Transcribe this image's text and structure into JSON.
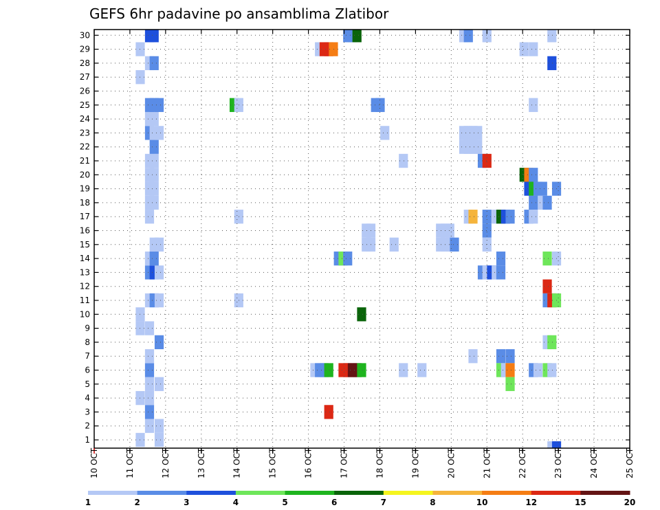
{
  "chart_data": {
    "type": "heatmap",
    "title": "GEFS 6hr padavine po ansamblima Zlatibor",
    "xlabel": "",
    "ylabel": "",
    "x_tick_labels": [
      "10 OCT",
      "11 OCT",
      "12 OCT",
      "13 OCT",
      "14 OCT",
      "15 OCT",
      "16 OCT",
      "17 OCT",
      "18 OCT",
      "19 OCT",
      "20 OCT",
      "21 OCT",
      "22 OCT",
      "23 OCT",
      "24 OCT",
      "25 OCT"
    ],
    "xlim": [
      0,
      15
    ],
    "ylim": [
      0,
      30
    ],
    "y_tick_labels": [
      "1",
      "2",
      "3",
      "4",
      "5",
      "6",
      "7",
      "8",
      "9",
      "10",
      "11",
      "12",
      "13",
      "14",
      "15",
      "16",
      "17",
      "18",
      "19",
      "20",
      "21",
      "22",
      "23",
      "24",
      "25",
      "26",
      "27",
      "28",
      "29",
      "30"
    ],
    "grid": true,
    "colorbar": {
      "labels": [
        "1",
        "2",
        "3",
        "4",
        "5",
        "6",
        "7",
        "8",
        "10",
        "12",
        "15",
        "20"
      ],
      "colors": [
        "#b4c8f5",
        "#5a8ce6",
        "#1e50dc",
        "#6ee65a",
        "#1eb41e",
        "#0a640a",
        "#f5f51e",
        "#f5b43c",
        "#f57d14",
        "#dc2814",
        "#641414"
      ]
    },
    "cells": [
      {
        "x": 1.29,
        "y": 1,
        "c": 0
      },
      {
        "x": 1.82,
        "y": 1,
        "c": 0
      },
      {
        "x": 1.55,
        "y": 2,
        "c": 0
      },
      {
        "x": 1.82,
        "y": 2,
        "c": 0
      },
      {
        "x": 1.55,
        "y": 3,
        "c": 1
      },
      {
        "x": 1.29,
        "y": 4,
        "c": 0
      },
      {
        "x": 1.55,
        "y": 4,
        "c": 0
      },
      {
        "x": 1.55,
        "y": 5,
        "c": 0
      },
      {
        "x": 1.82,
        "y": 5,
        "c": 0
      },
      {
        "x": 1.55,
        "y": 6,
        "c": 1
      },
      {
        "x": 1.55,
        "y": 7,
        "c": 0
      },
      {
        "x": 1.82,
        "y": 8,
        "c": 1
      },
      {
        "x": 1.29,
        "y": 9,
        "c": 0
      },
      {
        "x": 1.55,
        "y": 9,
        "c": 0
      },
      {
        "x": 1.29,
        "y": 10,
        "c": 0
      },
      {
        "x": 1.55,
        "y": 11,
        "c": 0
      },
      {
        "x": 1.68,
        "y": 11,
        "c": 1
      },
      {
        "x": 1.82,
        "y": 11,
        "c": 0
      },
      {
        "x": 1.55,
        "y": 13,
        "c": 1
      },
      {
        "x": 1.68,
        "y": 13,
        "c": 2
      },
      {
        "x": 1.82,
        "y": 13,
        "c": 0
      },
      {
        "x": 1.55,
        "y": 14,
        "c": 0
      },
      {
        "x": 1.68,
        "y": 14,
        "c": 1
      },
      {
        "x": 1.68,
        "y": 15,
        "c": 0
      },
      {
        "x": 1.82,
        "y": 15,
        "c": 0
      },
      {
        "x": 1.55,
        "y": 17,
        "c": 0
      },
      {
        "x": 1.55,
        "y": 18,
        "c": 0
      },
      {
        "x": 1.68,
        "y": 18,
        "c": 0
      },
      {
        "x": 1.55,
        "y": 19,
        "c": 0
      },
      {
        "x": 1.68,
        "y": 19,
        "c": 0
      },
      {
        "x": 1.55,
        "y": 20,
        "c": 0
      },
      {
        "x": 1.68,
        "y": 20,
        "c": 0
      },
      {
        "x": 1.55,
        "y": 21,
        "c": 0
      },
      {
        "x": 1.68,
        "y": 21,
        "c": 0
      },
      {
        "x": 1.68,
        "y": 22,
        "c": 1
      },
      {
        "x": 1.55,
        "y": 23,
        "c": 1
      },
      {
        "x": 1.68,
        "y": 23,
        "c": 0
      },
      {
        "x": 1.82,
        "y": 23,
        "c": 0
      },
      {
        "x": 1.55,
        "y": 24,
        "c": 0
      },
      {
        "x": 1.68,
        "y": 24,
        "c": 0
      },
      {
        "x": 1.55,
        "y": 25,
        "c": 1
      },
      {
        "x": 1.68,
        "y": 25,
        "c": 1
      },
      {
        "x": 1.82,
        "y": 25,
        "c": 1
      },
      {
        "x": 1.29,
        "y": 27,
        "c": 0
      },
      {
        "x": 1.55,
        "y": 28,
        "c": 0
      },
      {
        "x": 1.68,
        "y": 28,
        "c": 1
      },
      {
        "x": 1.29,
        "y": 29,
        "c": 0
      },
      {
        "x": 1.55,
        "y": 30,
        "c": 2
      },
      {
        "x": 1.68,
        "y": 30,
        "c": 2
      },
      {
        "x": 3.92,
        "y": 25,
        "c": 4
      },
      {
        "x": 4.05,
        "y": 25,
        "c": 0
      },
      {
        "x": 4.05,
        "y": 17,
        "c": 0
      },
      {
        "x": 4.05,
        "y": 11,
        "c": 0
      },
      {
        "x": 6.57,
        "y": 3,
        "c": 9
      },
      {
        "x": 6.18,
        "y": 6,
        "c": 0
      },
      {
        "x": 6.31,
        "y": 6,
        "c": 1
      },
      {
        "x": 6.44,
        "y": 6,
        "c": 1
      },
      {
        "x": 6.57,
        "y": 6,
        "c": 4
      },
      {
        "x": 6.97,
        "y": 6,
        "c": 9
      },
      {
        "x": 7.1,
        "y": 6,
        "c": 9
      },
      {
        "x": 7.23,
        "y": 6,
        "c": 10
      },
      {
        "x": 7.36,
        "y": 6,
        "c": 10
      },
      {
        "x": 7.49,
        "y": 6,
        "c": 4
      },
      {
        "x": 7.49,
        "y": 10,
        "c": 5
      },
      {
        "x": 6.84,
        "y": 14,
        "c": 1
      },
      {
        "x": 6.97,
        "y": 14,
        "c": 3
      },
      {
        "x": 7.1,
        "y": 14,
        "c": 1
      },
      {
        "x": 7.62,
        "y": 15,
        "c": 0
      },
      {
        "x": 7.75,
        "y": 15,
        "c": 0
      },
      {
        "x": 7.62,
        "y": 16,
        "c": 0
      },
      {
        "x": 7.75,
        "y": 16,
        "c": 0
      },
      {
        "x": 7.88,
        "y": 25,
        "c": 1
      },
      {
        "x": 8.01,
        "y": 25,
        "c": 1
      },
      {
        "x": 8.14,
        "y": 23,
        "c": 0
      },
      {
        "x": 8.66,
        "y": 21,
        "c": 0
      },
      {
        "x": 8.4,
        "y": 15,
        "c": 0
      },
      {
        "x": 8.66,
        "y": 6,
        "c": 0
      },
      {
        "x": 9.18,
        "y": 6,
        "c": 0
      },
      {
        "x": 6.31,
        "y": 29,
        "c": 0
      },
      {
        "x": 6.44,
        "y": 29,
        "c": 9
      },
      {
        "x": 6.57,
        "y": 29,
        "c": 9
      },
      {
        "x": 6.7,
        "y": 29,
        "c": 8
      },
      {
        "x": 7.1,
        "y": 30,
        "c": 1
      },
      {
        "x": 7.23,
        "y": 30,
        "c": 1
      },
      {
        "x": 7.36,
        "y": 30,
        "c": 5
      },
      {
        "x": 9.7,
        "y": 15,
        "c": 0
      },
      {
        "x": 9.83,
        "y": 15,
        "c": 0
      },
      {
        "x": 9.96,
        "y": 15,
        "c": 0
      },
      {
        "x": 10.09,
        "y": 15,
        "c": 1
      },
      {
        "x": 9.7,
        "y": 16,
        "c": 0
      },
      {
        "x": 9.83,
        "y": 16,
        "c": 0
      },
      {
        "x": 9.96,
        "y": 16,
        "c": 0
      },
      {
        "x": 10.35,
        "y": 23,
        "c": 0
      },
      {
        "x": 10.48,
        "y": 23,
        "c": 0
      },
      {
        "x": 10.61,
        "y": 23,
        "c": 0
      },
      {
        "x": 10.74,
        "y": 23,
        "c": 0
      },
      {
        "x": 10.35,
        "y": 22,
        "c": 0
      },
      {
        "x": 10.48,
        "y": 22,
        "c": 0
      },
      {
        "x": 10.61,
        "y": 22,
        "c": 0
      },
      {
        "x": 10.74,
        "y": 22,
        "c": 0
      },
      {
        "x": 10.35,
        "y": 30,
        "c": 0
      },
      {
        "x": 10.48,
        "y": 30,
        "c": 1
      },
      {
        "x": 11.0,
        "y": 30,
        "c": 0
      },
      {
        "x": 10.48,
        "y": 17,
        "c": 0
      },
      {
        "x": 10.61,
        "y": 17,
        "c": 7
      },
      {
        "x": 10.61,
        "y": 7,
        "c": 0
      },
      {
        "x": 10.87,
        "y": 21,
        "c": 1
      },
      {
        "x": 11.0,
        "y": 21,
        "c": 9
      },
      {
        "x": 11.0,
        "y": 17,
        "c": 1
      },
      {
        "x": 11.0,
        "y": 16,
        "c": 1
      },
      {
        "x": 11.0,
        "y": 15,
        "c": 0
      },
      {
        "x": 10.87,
        "y": 13,
        "c": 1
      },
      {
        "x": 11.0,
        "y": 13,
        "c": 0
      },
      {
        "x": 11.13,
        "y": 13,
        "c": 2
      },
      {
        "x": 11.26,
        "y": 13,
        "c": 0
      },
      {
        "x": 11.39,
        "y": 13,
        "c": 1
      },
      {
        "x": 11.39,
        "y": 14,
        "c": 1
      },
      {
        "x": 11.26,
        "y": 17,
        "c": 0
      },
      {
        "x": 11.39,
        "y": 17,
        "c": 5
      },
      {
        "x": 11.52,
        "y": 17,
        "c": 2
      },
      {
        "x": 11.65,
        "y": 17,
        "c": 1
      },
      {
        "x": 11.39,
        "y": 7,
        "c": 1
      },
      {
        "x": 11.65,
        "y": 7,
        "c": 1
      },
      {
        "x": 11.39,
        "y": 6,
        "c": 3
      },
      {
        "x": 11.52,
        "y": 6,
        "c": 0
      },
      {
        "x": 11.65,
        "y": 6,
        "c": 8
      },
      {
        "x": 11.65,
        "y": 5,
        "c": 3
      },
      {
        "x": 12.04,
        "y": 29,
        "c": 0
      },
      {
        "x": 12.3,
        "y": 29,
        "c": 0
      },
      {
        "x": 12.04,
        "y": 20,
        "c": 5
      },
      {
        "x": 12.17,
        "y": 20,
        "c": 8
      },
      {
        "x": 12.3,
        "y": 20,
        "c": 1
      },
      {
        "x": 12.17,
        "y": 19,
        "c": 2
      },
      {
        "x": 12.3,
        "y": 19,
        "c": 4
      },
      {
        "x": 12.43,
        "y": 19,
        "c": 1
      },
      {
        "x": 12.56,
        "y": 19,
        "c": 1
      },
      {
        "x": 12.3,
        "y": 18,
        "c": 1
      },
      {
        "x": 12.56,
        "y": 18,
        "c": 0
      },
      {
        "x": 12.69,
        "y": 18,
        "c": 1
      },
      {
        "x": 12.17,
        "y": 17,
        "c": 1
      },
      {
        "x": 12.3,
        "y": 17,
        "c": 0
      },
      {
        "x": 12.3,
        "y": 25,
        "c": 0
      },
      {
        "x": 12.3,
        "y": 6,
        "c": 1
      },
      {
        "x": 12.43,
        "y": 6,
        "c": 0
      },
      {
        "x": 12.69,
        "y": 14,
        "c": 3
      },
      {
        "x": 12.69,
        "y": 12,
        "c": 9
      },
      {
        "x": 12.69,
        "y": 11,
        "c": 1
      },
      {
        "x": 12.82,
        "y": 11,
        "c": 9
      },
      {
        "x": 12.95,
        "y": 11,
        "c": 3
      },
      {
        "x": 12.69,
        "y": 8,
        "c": 0
      },
      {
        "x": 12.82,
        "y": 8,
        "c": 3
      },
      {
        "x": 12.69,
        "y": 6,
        "c": 3
      },
      {
        "x": 12.82,
        "y": 6,
        "c": 0
      },
      {
        "x": 12.82,
        "y": 30,
        "c": 0
      },
      {
        "x": 12.82,
        "y": 28,
        "c": 2
      },
      {
        "x": 12.95,
        "y": 19,
        "c": 1
      },
      {
        "x": 12.95,
        "y": 14,
        "c": 0
      },
      {
        "x": 12.82,
        "y": 0.4,
        "c": 0
      },
      {
        "x": 12.95,
        "y": 0.4,
        "c": 2
      }
    ]
  }
}
